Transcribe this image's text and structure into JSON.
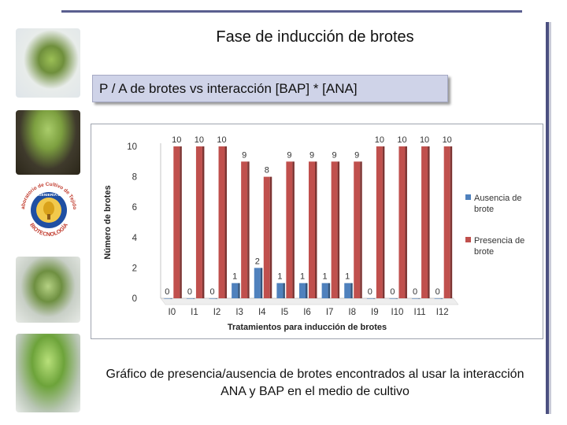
{
  "slide": {
    "title": "Fase de inducción de brotes",
    "subtitle": "P / A de brotes vs interacción  [BAP] * [ANA]",
    "caption": "Gráfico de presencia/ausencia de brotes encontrados  al usar la interacción ANA y BAP en el medio de cultivo"
  },
  "logo": {
    "text_top": "Laboratorio de Cultivo de Tejidos",
    "text_ring": "INGENIERÍA EN",
    "text_bottom": "BIOTECNOLOGÍA",
    "colors": {
      "ring": "#1f4fa3",
      "fill": "#f2c94c",
      "text": "#c0392b"
    }
  },
  "chart_data": {
    "type": "bar",
    "categories": [
      "I0",
      "I1",
      "I2",
      "I3",
      "I4",
      "I5",
      "I6",
      "I7",
      "I8",
      "I9",
      "I10",
      "I11",
      "I12"
    ],
    "series": [
      {
        "name": "Ausencia de brote",
        "color": "#4f81bd",
        "values": [
          0,
          0,
          0,
          1,
          2,
          1,
          1,
          1,
          1,
          0,
          0,
          0,
          0
        ]
      },
      {
        "name": "Presencia de brote",
        "color": "#c0504d",
        "values": [
          10,
          10,
          10,
          9,
          8,
          9,
          9,
          9,
          9,
          10,
          10,
          10,
          10
        ]
      }
    ],
    "xlabel": "Tratamientos para inducción  de brotes",
    "ylabel": "Número de brotes",
    "yticks": [
      0,
      2,
      4,
      6,
      8,
      10
    ],
    "ylim": [
      0,
      10
    ],
    "legend": "right",
    "grid": false
  }
}
